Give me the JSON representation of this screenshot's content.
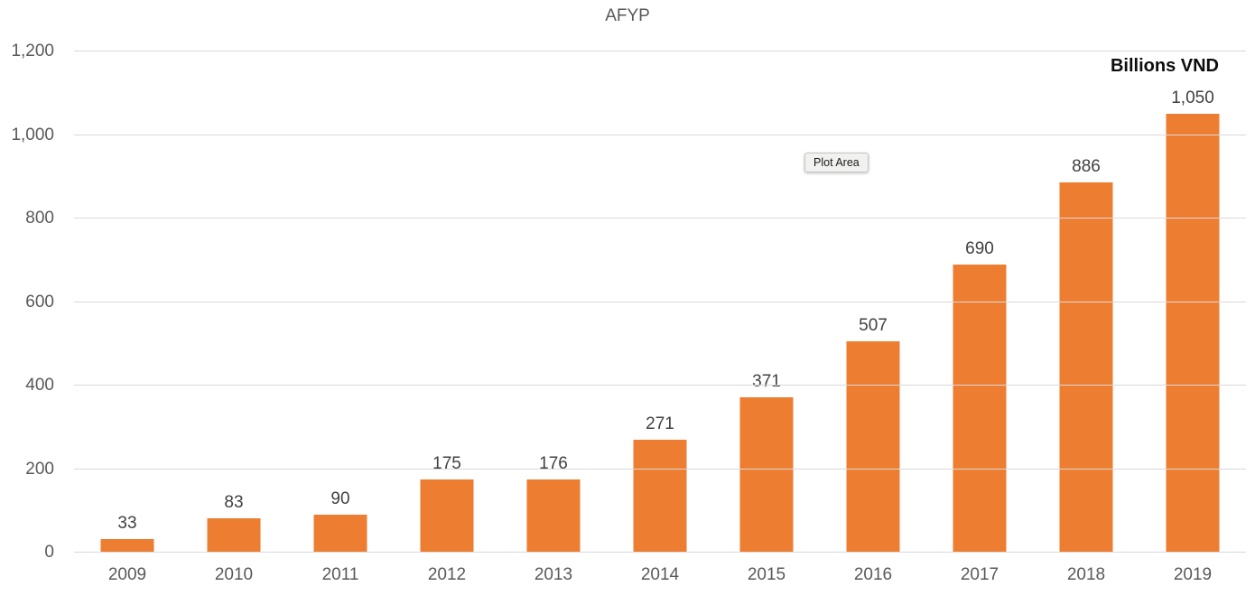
{
  "chart": {
    "title": "AFYP",
    "unit_label": "Billions VND",
    "tooltip_text": "Plot Area",
    "colors": {
      "bar": "#ed7d31",
      "gridline": "#d9d9d9",
      "axis_text": "#595959",
      "data_label_text": "#404040",
      "title_text": "#595959",
      "unit_label_text": "#0d0d0d",
      "background": "#ffffff"
    }
  },
  "chart_data": {
    "type": "bar",
    "title": "AFYP",
    "xlabel": "",
    "ylabel": "Billions VND",
    "categories": [
      "2009",
      "2010",
      "2011",
      "2012",
      "2013",
      "2014",
      "2015",
      "2016",
      "2017",
      "2018",
      "2019"
    ],
    "values": [
      33,
      83,
      90,
      175,
      176,
      271,
      371,
      507,
      690,
      886,
      1050
    ],
    "data_labels": [
      "33",
      "83",
      "90",
      "175",
      "176",
      "271",
      "371",
      "507",
      "690",
      "886",
      "1,050"
    ],
    "ylim": [
      0,
      1200
    ],
    "yticks": [
      0,
      200,
      400,
      600,
      800,
      1000,
      1200
    ],
    "ytick_labels": [
      "0",
      "200",
      "400",
      "600",
      "800",
      "1,000",
      "1,200"
    ],
    "grid": true,
    "legend_position": "none",
    "annotations": [
      "Plot Area"
    ]
  }
}
